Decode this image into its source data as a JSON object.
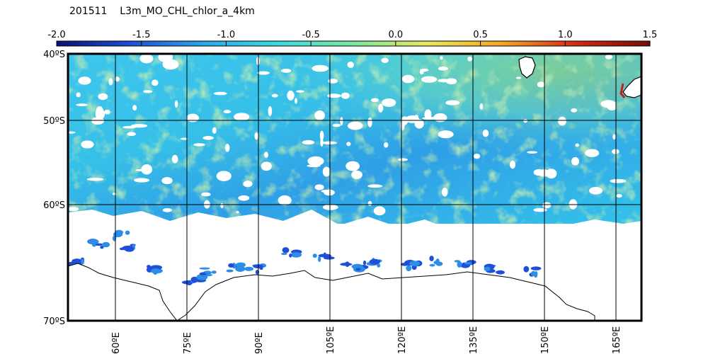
{
  "title": {
    "date": "201511",
    "product": "L3m_MO_CHL_chlor_a_4km"
  },
  "colorbar": {
    "min": -2.0,
    "max": 1.5,
    "ticks": [
      "-2.0",
      "-1.5",
      "-1.0",
      "-0.5",
      "0.0",
      "0.5",
      "1.0",
      "1.5"
    ],
    "colors": [
      "#08107a",
      "#1d4fd6",
      "#2aa7ee",
      "#3fd9e2",
      "#7be7a0",
      "#e8e85a",
      "#f5a623",
      "#d62a10",
      "#7a0a05"
    ]
  },
  "map": {
    "lat_labels": [
      "40ºS",
      "50ºS",
      "60ºS",
      "70ºS"
    ],
    "lon_labels": [
      "60ºE",
      "75ºE",
      "90ºE",
      "105ºE",
      "120ºE",
      "135ºE",
      "150ºE",
      "165ºE"
    ],
    "ocean_colors": {
      "low": "#2d8ee8",
      "mid": "#33c6ea",
      "high": "#8fe36f",
      "ice_edge": "#1f4fd8",
      "land": "#ffffff"
    }
  }
}
